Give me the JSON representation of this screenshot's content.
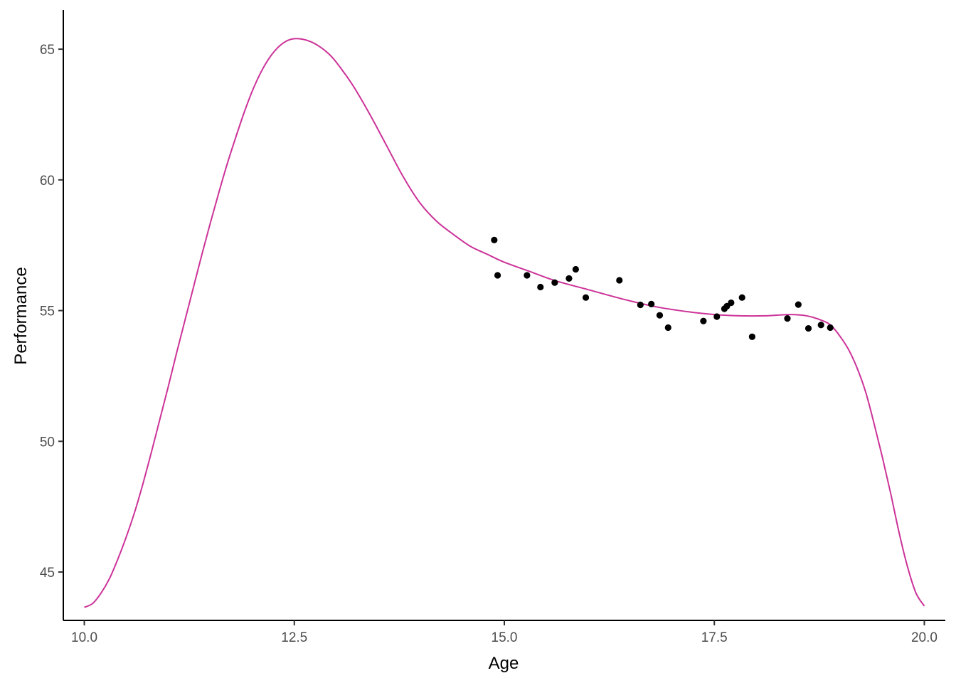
{
  "chart_data": {
    "type": "scatter",
    "title": "",
    "xlabel": "Age",
    "ylabel": "Performance",
    "xlim": [
      9.75,
      20.25
    ],
    "ylim": [
      43.15,
      66.5
    ],
    "x_ticks": [
      10.0,
      12.5,
      15.0,
      17.5,
      20.0
    ],
    "x_tick_labels": [
      "10.0",
      "12.5",
      "15.0",
      "17.5",
      "20.0"
    ],
    "y_ticks": [
      45,
      50,
      55,
      60,
      65
    ],
    "y_tick_labels": [
      "45",
      "50",
      "55",
      "60",
      "65"
    ],
    "grid": false,
    "legend": "none",
    "colors": {
      "curve": "#cc3399",
      "points": "#000000",
      "axis": "#000000",
      "tick_label": "#4d4d4d"
    },
    "points": [
      {
        "x": 14.88,
        "y": 57.7
      },
      {
        "x": 14.92,
        "y": 56.35
      },
      {
        "x": 15.27,
        "y": 56.35
      },
      {
        "x": 15.43,
        "y": 55.9
      },
      {
        "x": 15.6,
        "y": 56.07
      },
      {
        "x": 15.77,
        "y": 56.23
      },
      {
        "x": 15.85,
        "y": 56.58
      },
      {
        "x": 15.97,
        "y": 55.5
      },
      {
        "x": 16.37,
        "y": 56.16
      },
      {
        "x": 16.62,
        "y": 55.22
      },
      {
        "x": 16.75,
        "y": 55.25
      },
      {
        "x": 16.85,
        "y": 54.82
      },
      {
        "x": 16.95,
        "y": 54.35
      },
      {
        "x": 17.37,
        "y": 54.6
      },
      {
        "x": 17.53,
        "y": 54.77
      },
      {
        "x": 17.62,
        "y": 55.07
      },
      {
        "x": 17.65,
        "y": 55.17
      },
      {
        "x": 17.7,
        "y": 55.3
      },
      {
        "x": 17.83,
        "y": 55.5
      },
      {
        "x": 17.95,
        "y": 54.0
      },
      {
        "x": 18.37,
        "y": 54.7
      },
      {
        "x": 18.5,
        "y": 55.23
      },
      {
        "x": 18.62,
        "y": 54.32
      },
      {
        "x": 18.77,
        "y": 54.45
      },
      {
        "x": 18.88,
        "y": 54.35
      }
    ],
    "series": [
      {
        "type": "line",
        "x": [
          10.0,
          10.1,
          10.2,
          10.3,
          10.4,
          10.5,
          10.6,
          10.7,
          10.8,
          10.9,
          11.0,
          11.1,
          11.2,
          11.3,
          11.4,
          11.5,
          11.6,
          11.7,
          11.8,
          11.9,
          12.0,
          12.1,
          12.2,
          12.3,
          12.4,
          12.5,
          12.6,
          12.7,
          12.8,
          12.9,
          13.0,
          13.2,
          13.4,
          13.6,
          13.8,
          14.0,
          14.2,
          14.4,
          14.6,
          14.8,
          15.0,
          15.3,
          15.6,
          16.0,
          16.4,
          16.8,
          17.2,
          17.5,
          17.8,
          18.1,
          18.4,
          18.6,
          18.8,
          18.9,
          19.0,
          19.1,
          19.2,
          19.3,
          19.4,
          19.5,
          19.6,
          19.7,
          19.8,
          19.9,
          20.0
        ],
        "y": [
          43.65,
          43.8,
          44.2,
          44.75,
          45.5,
          46.35,
          47.3,
          48.4,
          49.6,
          50.85,
          52.1,
          53.4,
          54.65,
          55.9,
          57.15,
          58.35,
          59.5,
          60.6,
          61.6,
          62.55,
          63.4,
          64.1,
          64.65,
          65.05,
          65.3,
          65.4,
          65.38,
          65.28,
          65.1,
          64.85,
          64.5,
          63.6,
          62.5,
          61.3,
          60.1,
          59.1,
          58.4,
          57.9,
          57.45,
          57.15,
          56.85,
          56.5,
          56.15,
          55.8,
          55.45,
          55.15,
          54.95,
          54.85,
          54.8,
          54.8,
          54.85,
          54.8,
          54.6,
          54.4,
          54.0,
          53.5,
          52.8,
          51.9,
          50.7,
          49.4,
          48.0,
          46.5,
          45.2,
          44.2,
          43.7
        ]
      }
    ]
  }
}
